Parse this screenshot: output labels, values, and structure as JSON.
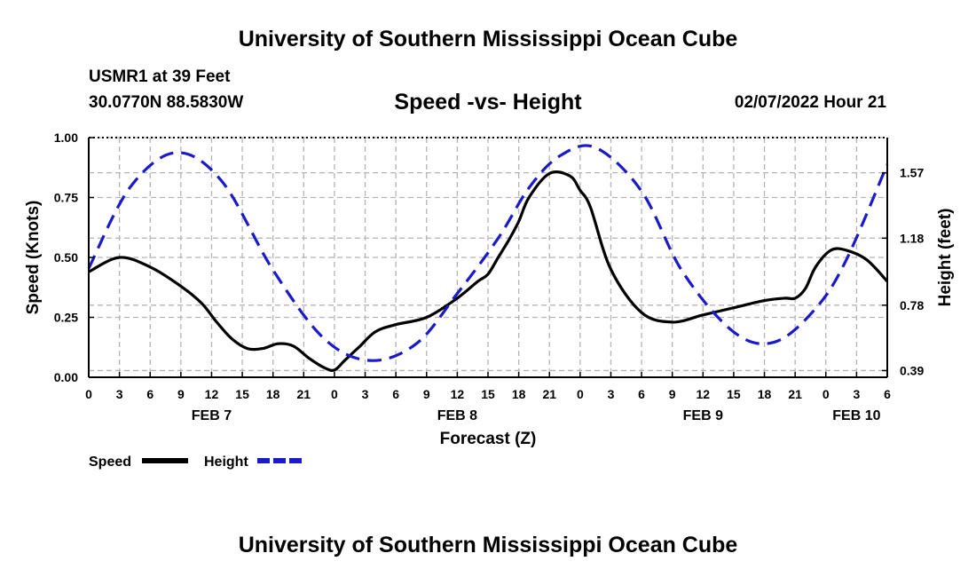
{
  "header": {
    "main_title": "University of Southern Mississippi Ocean Cube",
    "station_name": "USMR1 at 39 Feet",
    "station_coords": "30.0770N  88.5830W",
    "chart_title": "Speed -vs- Height",
    "timestamp": "02/07/2022 Hour 21"
  },
  "footer": {
    "title": "University of Southern Mississippi Ocean Cube"
  },
  "colors": {
    "speed": "#000000",
    "height": "#1a1ac8",
    "grid": "#b4b4b4"
  },
  "chart_data": {
    "type": "line",
    "title": "Speed -vs- Height",
    "xlabel": "Forecast (Z)",
    "ylabel": "Speed (Knots)",
    "ylabel_right": "Height (feet)",
    "xlim": [
      0,
      78
    ],
    "ylim": [
      0,
      1
    ],
    "yticks": [
      "0.00",
      "0.25",
      "0.50",
      "0.75",
      "1.00"
    ],
    "ylim_right": [
      0.35,
      1.78
    ],
    "yticks_right": [
      "0.39",
      "0.78",
      "1.18",
      "1.57"
    ],
    "x_tick_labels": [
      "0",
      "3",
      "6",
      "9",
      "12",
      "15",
      "18",
      "21",
      "0",
      "3",
      "6",
      "9",
      "12",
      "15",
      "18",
      "21",
      "0",
      "3",
      "6",
      "9",
      "12",
      "15",
      "18",
      "21",
      "0",
      "3",
      "6"
    ],
    "day_labels": [
      {
        "hour": 12,
        "label": "FEB 7"
      },
      {
        "hour": 36,
        "label": "FEB 8"
      },
      {
        "hour": 60,
        "label": "FEB 9"
      },
      {
        "hour": 75,
        "label": "FEB 10"
      }
    ],
    "series": [
      {
        "name": "Speed",
        "axis": "left",
        "x": [
          0,
          3,
          6,
          9,
          11,
          12.5,
          14,
          15.5,
          17,
          18.5,
          20,
          21.5,
          23,
          24,
          25,
          26.5,
          28,
          30,
          33,
          36,
          38,
          39,
          40,
          41,
          42,
          43,
          45,
          47,
          48,
          49,
          51,
          54,
          57,
          60,
          63,
          66,
          68,
          69,
          70,
          71,
          72.5,
          74,
          76,
          78
        ],
        "values": [
          0.44,
          0.5,
          0.46,
          0.38,
          0.31,
          0.23,
          0.16,
          0.12,
          0.12,
          0.14,
          0.13,
          0.08,
          0.04,
          0.03,
          0.07,
          0.13,
          0.19,
          0.22,
          0.25,
          0.33,
          0.4,
          0.43,
          0.5,
          0.57,
          0.65,
          0.75,
          0.85,
          0.84,
          0.78,
          0.71,
          0.45,
          0.27,
          0.23,
          0.26,
          0.29,
          0.32,
          0.33,
          0.33,
          0.37,
          0.46,
          0.53,
          0.53,
          0.49,
          0.4
        ]
      },
      {
        "name": "Height",
        "axis": "right",
        "x": [
          0,
          4,
          8.5,
          13,
          18,
          23,
          27.5,
          32,
          36,
          40,
          43,
          46,
          49.5,
          54,
          58,
          63,
          67,
          71,
          74,
          78
        ],
        "values": [
          1.0,
          1.48,
          1.69,
          1.52,
          0.99,
          0.58,
          0.45,
          0.55,
          0.85,
          1.18,
          1.48,
          1.67,
          1.72,
          1.46,
          0.98,
          0.62,
          0.56,
          0.76,
          1.05,
          1.62
        ]
      }
    ],
    "legend": {
      "placement": "bottom-left",
      "entries": [
        "Speed",
        "Height"
      ]
    }
  }
}
